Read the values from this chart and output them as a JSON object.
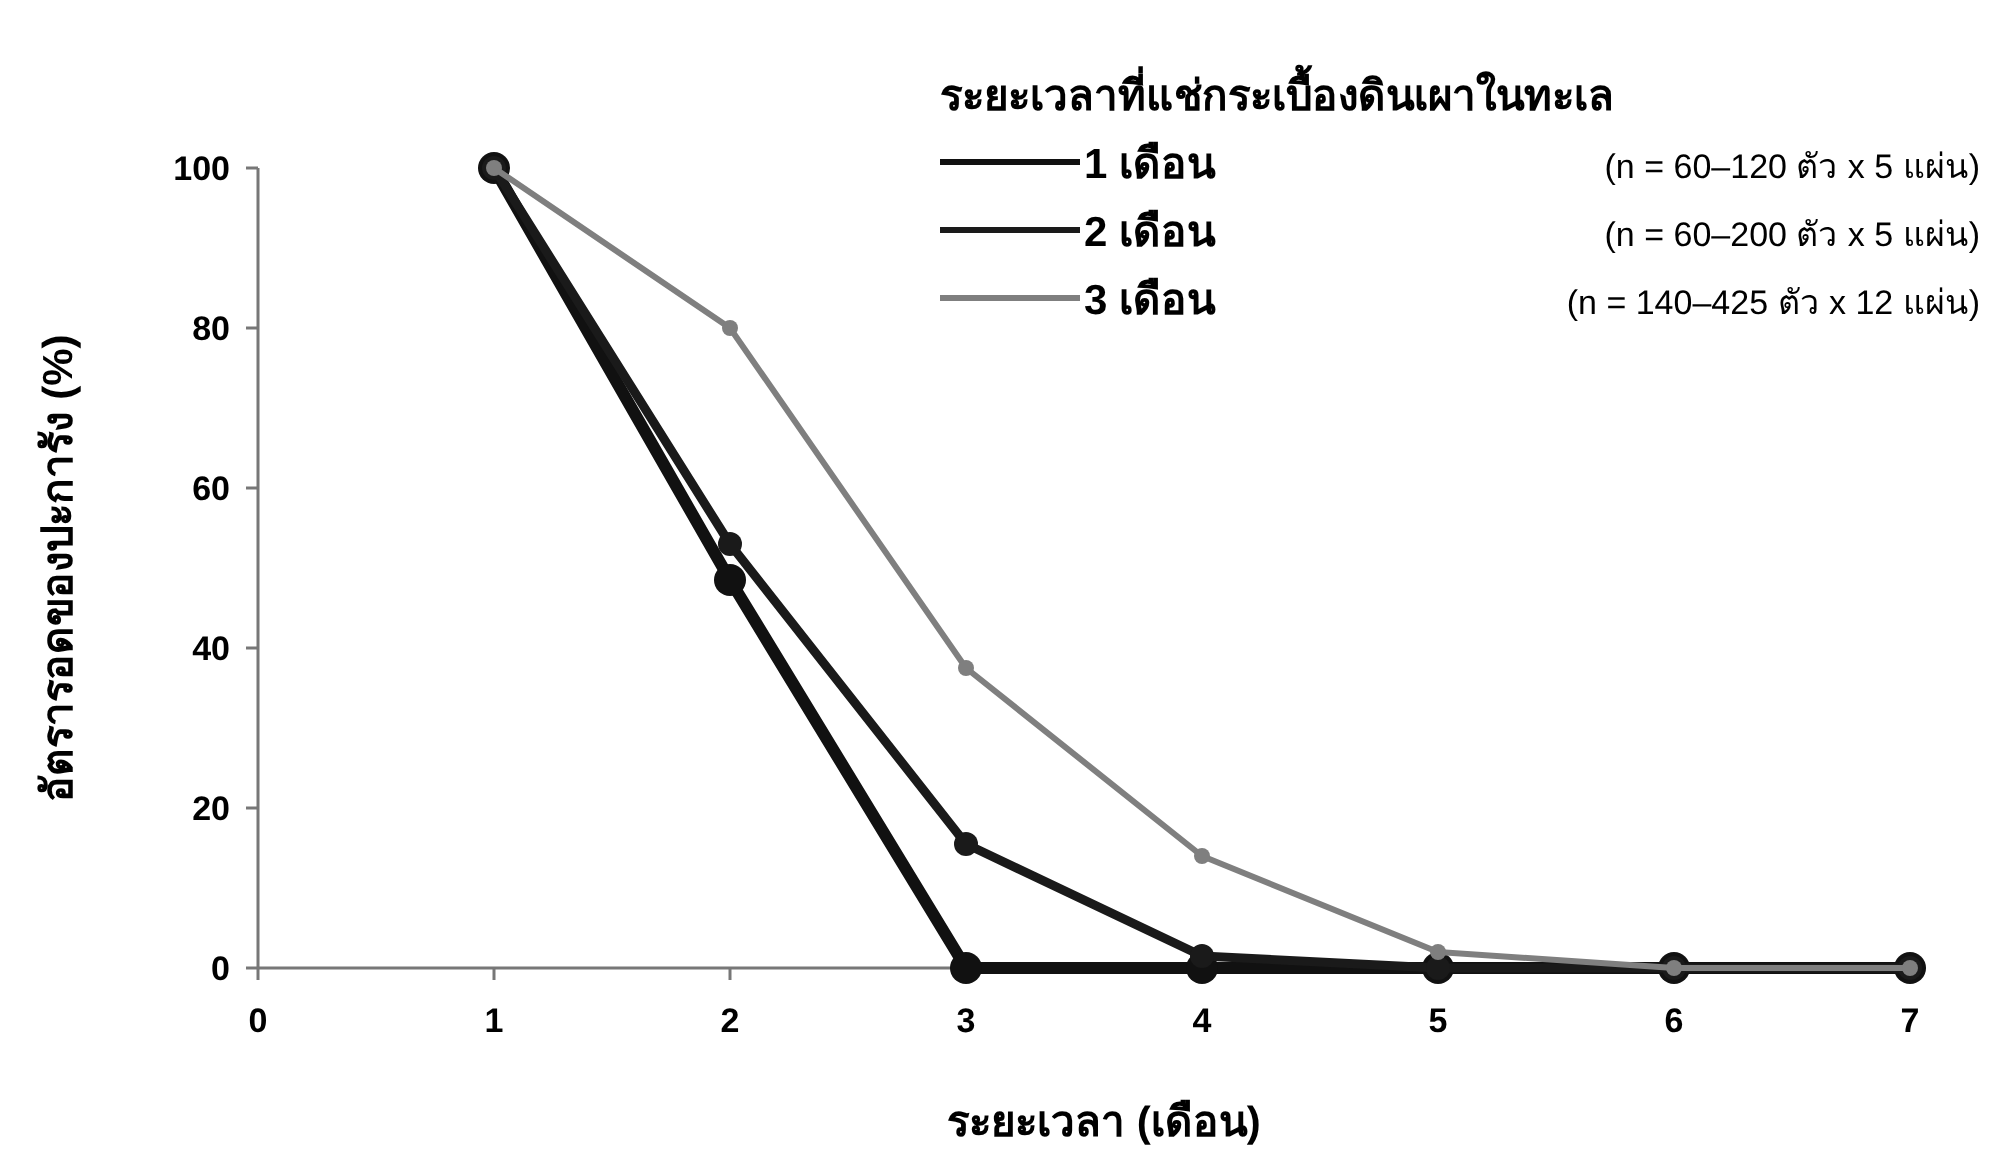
{
  "chart_data": {
    "type": "line",
    "xlabel": "ระยะเวลา (เดือน)",
    "ylabel": "อัตรารอดของปะการัง (%)",
    "legend_title": "ระยะเวลาที่แช่กระเบื้องดินเผาในทะเล",
    "x": [
      1,
      2,
      3,
      4,
      5,
      6,
      7
    ],
    "series": [
      {
        "name": "1 เดือน",
        "color": "#111111",
        "values": [
          100,
          48.5,
          0,
          0,
          0,
          0,
          0
        ]
      },
      {
        "name": "2 เดือน",
        "color": "#1a1a1a",
        "values": [
          100,
          53,
          15.5,
          1.5,
          0,
          0,
          0
        ]
      },
      {
        "name": "3 เดือน",
        "color": "#7f7f7f",
        "values": [
          100,
          80,
          37.5,
          14,
          2,
          0,
          0
        ]
      }
    ],
    "annotations": [
      "(n = 60–120 ตัว x 5 แผ่น)",
      "(n = 60–200 ตัว x 5 แผ่น)",
      "(n = 140–425 ตัว x 12 แผ่น)"
    ],
    "xlim": [
      0,
      7
    ],
    "ylim": [
      0,
      100
    ],
    "xticks": [
      0,
      1,
      2,
      3,
      4,
      5,
      6,
      7
    ],
    "yticks": [
      0,
      20,
      40,
      60,
      80,
      100
    ],
    "marker": "circle",
    "legend": "top right",
    "grid": false
  }
}
